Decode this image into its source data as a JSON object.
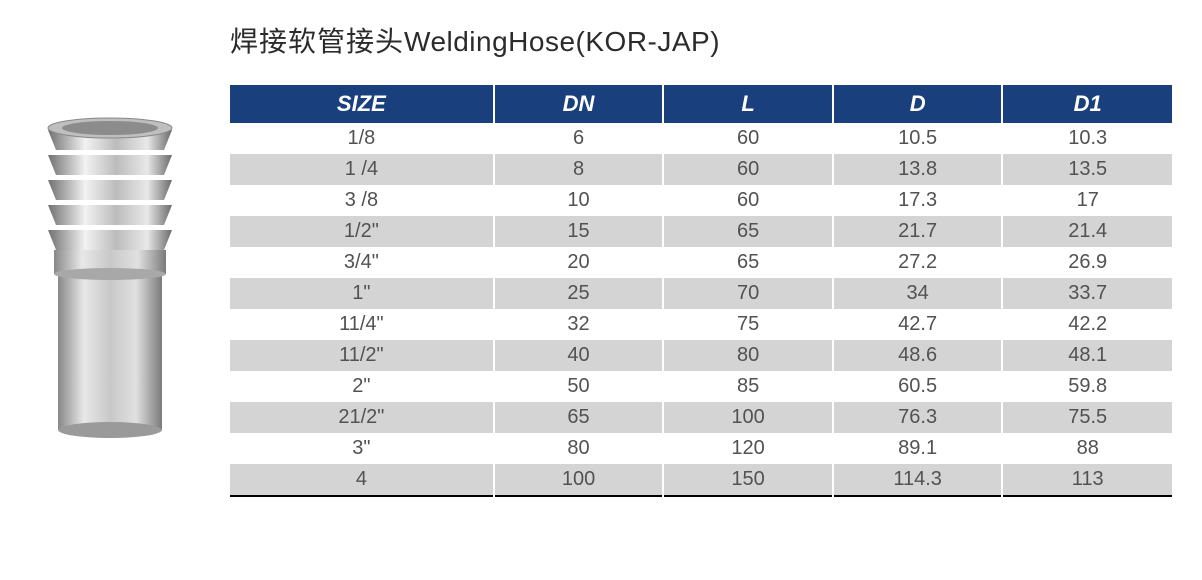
{
  "title": {
    "cn": "焊接软管接头",
    "en": "WeldingHose(KOR-JAP)"
  },
  "table": {
    "header_bg": "#193f7c",
    "header_fg": "#ffffff",
    "row_odd_bg": "#ffffff",
    "row_even_bg": "#d4d4d4",
    "text_color": "#525252",
    "border_color": "#000000",
    "header_fontsize": 22,
    "cell_fontsize": 20,
    "columns": [
      {
        "key": "size",
        "label": "SIZE",
        "width": "28%"
      },
      {
        "key": "dn",
        "label": "DN",
        "width": "18%"
      },
      {
        "key": "l",
        "label": "L",
        "width": "18%"
      },
      {
        "key": "d",
        "label": "D",
        "width": "18%"
      },
      {
        "key": "d1",
        "label": "D1",
        "width": "18%"
      }
    ],
    "rows": [
      {
        "size": "1/8",
        "dn": "6",
        "l": "60",
        "d": "10.5",
        "d1": "10.3"
      },
      {
        "size": "1 /4",
        "dn": "8",
        "l": "60",
        "d": "13.8",
        "d1": "13.5"
      },
      {
        "size": "3 /8",
        "dn": "10",
        "l": "60",
        "d": "17.3",
        "d1": "17"
      },
      {
        "size": "1/2\"",
        "dn": "15",
        "l": "65",
        "d": "21.7",
        "d1": "21.4"
      },
      {
        "size": "3/4\"",
        "dn": "20",
        "l": "65",
        "d": "27.2",
        "d1": "26.9"
      },
      {
        "size": "1\"",
        "dn": "25",
        "l": "70",
        "d": "34",
        "d1": "33.7"
      },
      {
        "size": "11/4\"",
        "dn": "32",
        "l": "75",
        "d": "42.7",
        "d1": "42.2"
      },
      {
        "size": "11/2\"",
        "dn": "40",
        "l": "80",
        "d": "48.6",
        "d1": "48.1"
      },
      {
        "size": "2\"",
        "dn": "50",
        "l": "85",
        "d": "60.5",
        "d1": "59.8"
      },
      {
        "size": "21/2\"",
        "dn": "65",
        "l": "100",
        "d": "76.3",
        "d1": "75.5"
      },
      {
        "size": "3\"",
        "dn": "80",
        "l": "120",
        "d": "89.1",
        "d1": "88"
      },
      {
        "size": "4",
        "dn": "100",
        "l": "150",
        "d": "114.3",
        "d1": "113"
      }
    ]
  },
  "image": {
    "body_fill_light": "#d8d8d8",
    "body_fill_dark": "#a8a8a8",
    "body_fill_darker": "#868686",
    "highlight": "#f0f0f0"
  }
}
